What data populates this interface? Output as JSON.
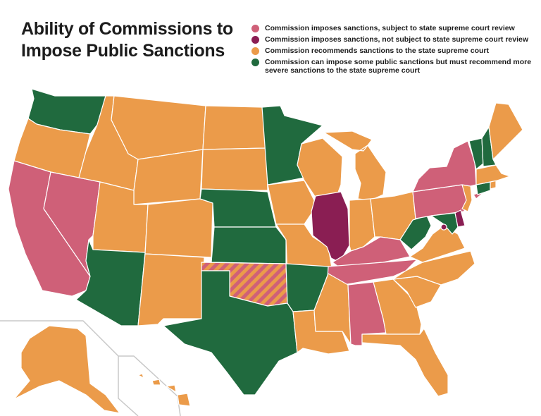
{
  "title": "Ability of Commissions to Impose Public Sanctions",
  "colors": {
    "pink": "#cf6078",
    "maroon": "#8a1e53",
    "orange": "#eb9b4a",
    "green": "#206a3e",
    "inset_border": "#c8c8c8"
  },
  "legend": [
    {
      "key": "pink",
      "label": "Commission imposes sanctions, subject to state supreme court review"
    },
    {
      "key": "maroon",
      "label": "Commission imposes sanctions, not subject to state supreme court review"
    },
    {
      "key": "orange",
      "label": "Commission recommends sanctions to the state supreme court"
    },
    {
      "key": "green",
      "label": "Commission can impose some public sanctions but must recommend more severe sanctions to the state supreme court"
    }
  ],
  "states": {
    "WA": "green",
    "OR": "orange",
    "CA": "pink",
    "NV": "pink",
    "ID": "orange",
    "MT": "orange",
    "WY": "orange",
    "UT": "orange",
    "CO": "orange",
    "AZ": "green",
    "NM": "orange",
    "ND": "orange",
    "SD": "orange",
    "NE": "green",
    "KS": "green",
    "OK": "split-pink-orange",
    "TX": "green",
    "MN": "green",
    "IA": "orange",
    "MO": "orange",
    "AR": "green",
    "LA": "orange",
    "WI": "orange",
    "IL": "maroon",
    "MI": "orange",
    "IN": "orange",
    "OH": "orange",
    "KY": "pink",
    "TN": "pink",
    "MS": "orange",
    "AL": "pink",
    "GA": "orange",
    "FL": "orange",
    "SC": "orange",
    "NC": "orange",
    "VA": "orange",
    "WV": "green",
    "MD": "green",
    "DE": "maroon",
    "DC": "maroon",
    "PA": "pink",
    "NY": "pink",
    "NJ": "orange",
    "CT": "green",
    "RI": "orange",
    "MA": "orange",
    "VT": "green",
    "NH": "green",
    "ME": "orange",
    "AK": "orange",
    "HI": "orange"
  }
}
